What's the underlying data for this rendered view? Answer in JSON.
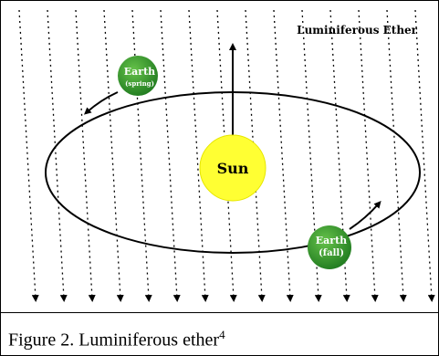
{
  "title": "Luminiferous Ether",
  "nodes": [
    {
      "label": "Sun"
    },
    {
      "label": "Earth",
      "sublabel": "(spring)"
    },
    {
      "label": "Earth",
      "sublabel": "(fall)"
    }
  ],
  "caption": {
    "text": "Figure 2. Luminiferous ether",
    "footnote": "4"
  }
}
